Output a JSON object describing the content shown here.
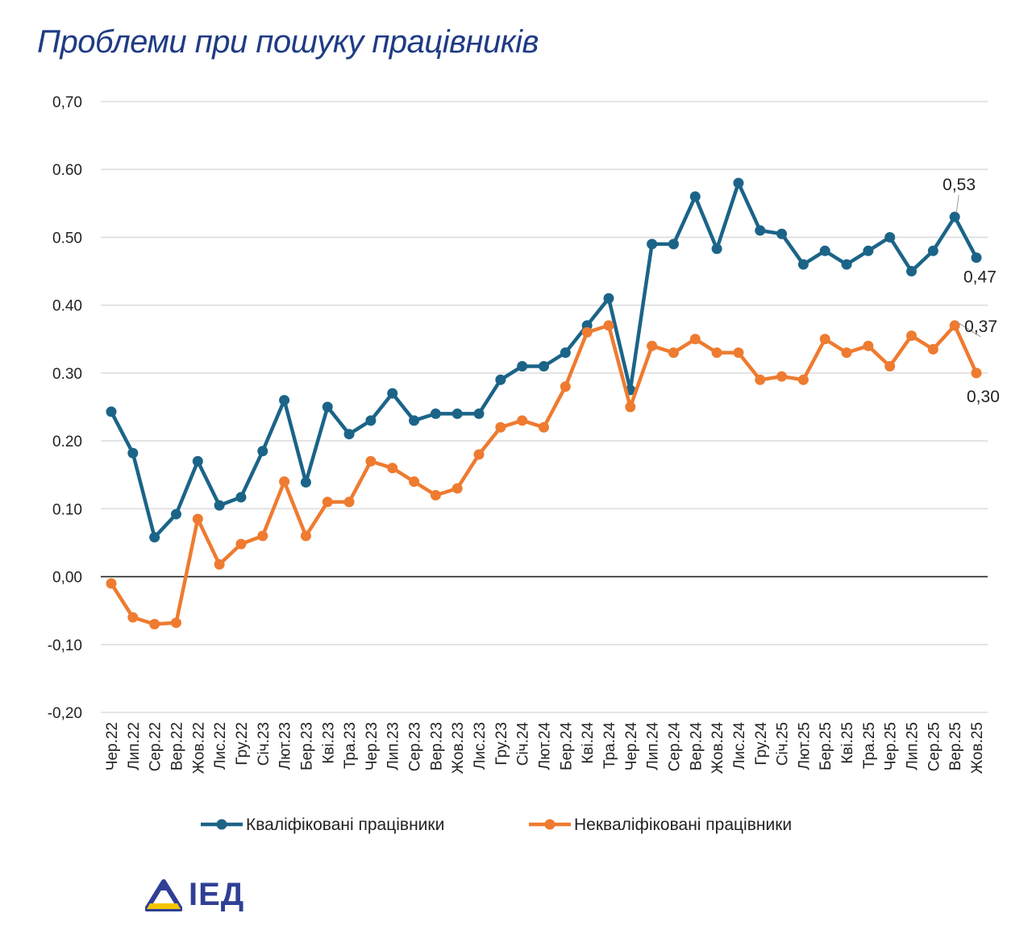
{
  "title": "Проблеми при пошуку працівників",
  "logo_text": "ІЕД",
  "chart_data": {
    "type": "line",
    "title": "Проблеми при пошуку працівників",
    "categories": [
      "Чер.22",
      "Лип.22",
      "Сер.22",
      "Вер.22",
      "Жов.22",
      "Лис.22",
      "Гру.22",
      "Січ.23",
      "Лют.23",
      "Бер.23",
      "Кві.23",
      "Тра.23",
      "Чер.23",
      "Лип.23",
      "Сер.23",
      "Вер.23",
      "Жов.23",
      "Лис.23",
      "Гру.23",
      "Січ.24",
      "Лют.24",
      "Бер.24",
      "Кві.24",
      "Тра.24",
      "Чер.24",
      "Лип.24",
      "Сер.24",
      "Вер.24",
      "Жов.24",
      "Лис.24",
      "Гру.24",
      "Січ.25",
      "Лют.25",
      "Бер.25",
      "Кві.25",
      "Тра.25",
      "Чер.25",
      "Лип.25",
      "Сер.25",
      "Вер.25",
      "Жов.25"
    ],
    "series": [
      {
        "name": "Кваліфіковані працівники",
        "color": "#1b6488",
        "values": [
          0.243,
          0.182,
          0.058,
          0.092,
          0.17,
          0.105,
          0.117,
          0.185,
          0.26,
          0.139,
          0.25,
          0.21,
          0.23,
          0.27,
          0.23,
          0.24,
          0.24,
          0.24,
          0.29,
          0.31,
          0.31,
          0.33,
          0.37,
          0.41,
          0.275,
          0.49,
          0.49,
          0.56,
          0.483,
          0.58,
          0.51,
          0.505,
          0.46,
          0.48,
          0.46,
          0.48,
          0.5,
          0.45,
          0.48,
          0.53,
          0.47
        ]
      },
      {
        "name": "Некваліфіковані працівники",
        "color": "#ee7b30",
        "values": [
          -0.01,
          -0.06,
          -0.07,
          -0.068,
          0.085,
          0.018,
          0.048,
          0.06,
          0.14,
          0.06,
          0.11,
          0.11,
          0.17,
          0.16,
          0.14,
          0.12,
          0.13,
          0.18,
          0.22,
          0.23,
          0.22,
          0.28,
          0.36,
          0.37,
          0.25,
          0.34,
          0.33,
          0.35,
          0.33,
          0.33,
          0.29,
          0.295,
          0.29,
          0.35,
          0.33,
          0.34,
          0.31,
          0.355,
          0.335,
          0.37,
          0.3
        ]
      }
    ],
    "ylim": [
      -0.2,
      0.7
    ],
    "yticks": [
      0.7,
      0.6,
      0.5,
      0.4,
      0.3,
      0.2,
      0.1,
      0.0,
      -0.1,
      -0.2
    ],
    "ytick_labels": [
      "0,70",
      "0.60",
      "0.50",
      "0.40",
      "0.30",
      "0.20",
      "0.10",
      "0,00",
      "-0,10",
      "-0,20"
    ],
    "data_labels": [
      {
        "series": 0,
        "index": 39,
        "text": "0,53"
      },
      {
        "series": 0,
        "index": 40,
        "text": "0,47"
      },
      {
        "series": 1,
        "index": 39,
        "text": "0,37"
      },
      {
        "series": 1,
        "index": 40,
        "text": "0,30"
      }
    ],
    "legend_position": "bottom",
    "grid": true
  }
}
